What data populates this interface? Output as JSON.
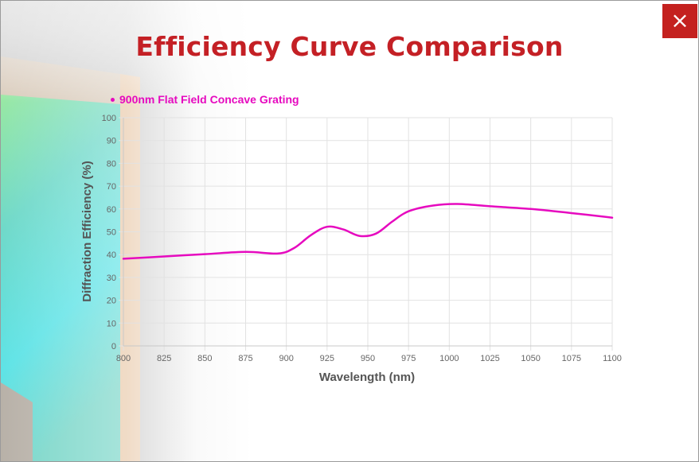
{
  "header": {
    "title": "Efficiency Curve Comparison",
    "close_label": "×"
  },
  "colors": {
    "accent": "#c42025",
    "series": "#e60abf",
    "grid": "#e2e2e2"
  },
  "chart_data": {
    "type": "line",
    "title": "Efficiency Curve Comparison",
    "xlabel": "Wavelength (nm)",
    "ylabel": "Diffraction Efficiency (%)",
    "xlim": [
      800,
      1100
    ],
    "ylim": [
      0,
      100
    ],
    "x_ticks": [
      800,
      825,
      850,
      875,
      900,
      925,
      950,
      975,
      1000,
      1025,
      1050,
      1075,
      1100
    ],
    "y_ticks": [
      0,
      10,
      20,
      30,
      40,
      50,
      60,
      70,
      80,
      90,
      100
    ],
    "grid": true,
    "legend": "top-left",
    "series": [
      {
        "name": "900nm Flat Field Concave Grating",
        "x": [
          800,
          825,
          850,
          875,
          895,
          905,
          915,
          925,
          935,
          945,
          955,
          965,
          975,
          990,
          1005,
          1025,
          1050,
          1075,
          1100
        ],
        "values": [
          38.2,
          39.2,
          40.2,
          41.2,
          40.5,
          43.0,
          48.5,
          52.2,
          51.0,
          48.2,
          49.2,
          54.5,
          59.0,
          61.5,
          62.2,
          61.2,
          60.0,
          58.2,
          56.2
        ]
      }
    ]
  }
}
